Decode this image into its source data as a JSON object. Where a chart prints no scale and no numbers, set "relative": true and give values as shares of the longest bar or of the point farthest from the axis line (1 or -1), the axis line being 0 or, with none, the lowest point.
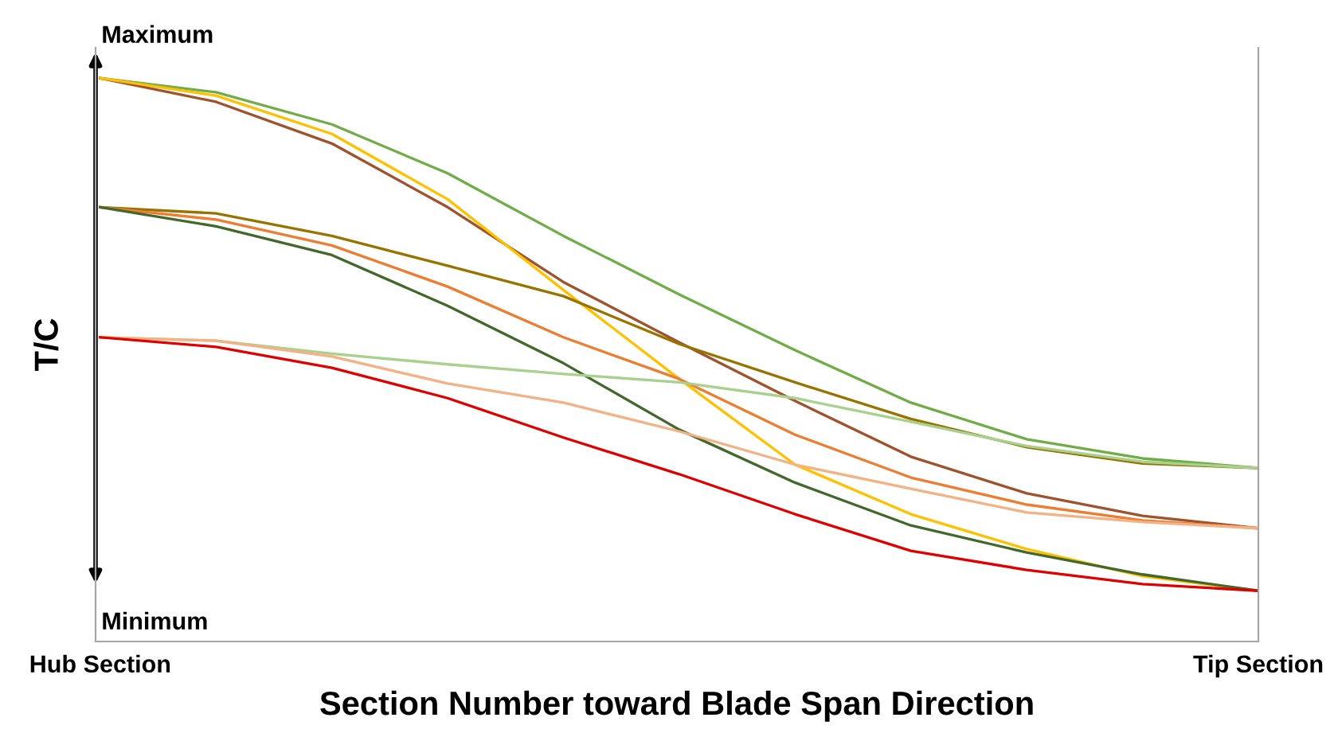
{
  "chart_data": {
    "type": "line",
    "relative": true,
    "xlabel": "Section Number toward Blade Span Direction",
    "ylabel": "T/C",
    "categories": [
      "Hub Section",
      null,
      null,
      null,
      null,
      null,
      null,
      null,
      null,
      null,
      "Tip Section"
    ],
    "annotations": [
      "Maximum",
      "Minimum"
    ],
    "grid": false,
    "legend": false,
    "marker": "none",
    "line_style": "solid",
    "series": [
      {
        "color": "#70ad47",
        "values": [
          1.0,
          0.975,
          0.918,
          0.831,
          0.72,
          0.616,
          0.517,
          0.424,
          0.359,
          0.325,
          0.308
        ]
      },
      {
        "color": "#a0522d",
        "values": [
          1.0,
          0.958,
          0.884,
          0.771,
          0.638,
          0.531,
          0.427,
          0.328,
          0.263,
          0.223,
          0.201
        ]
      },
      {
        "color": "#ffc000",
        "values": [
          1.0,
          0.969,
          0.901,
          0.785,
          0.624,
          0.466,
          0.314,
          0.226,
          0.164,
          0.116,
          0.09
        ]
      },
      {
        "color": "#997300",
        "values": [
          0.771,
          0.76,
          0.72,
          0.667,
          0.613,
          0.528,
          0.46,
          0.395,
          0.345,
          0.316,
          0.308
        ]
      },
      {
        "color": "#ed7d31",
        "values": [
          0.771,
          0.749,
          0.703,
          0.63,
          0.54,
          0.466,
          0.367,
          0.291,
          0.243,
          0.215,
          0.201
        ]
      },
      {
        "color": "#43682b",
        "values": [
          0.771,
          0.737,
          0.686,
          0.596,
          0.494,
          0.376,
          0.282,
          0.206,
          0.158,
          0.119,
          0.09
        ]
      },
      {
        "color": "#a9d18e",
        "values": [
          0.54,
          0.534,
          0.511,
          0.492,
          0.475,
          0.46,
          0.432,
          0.39,
          0.347,
          0.319,
          0.308
        ]
      },
      {
        "color": "#f4b183",
        "values": [
          0.54,
          0.534,
          0.506,
          0.458,
          0.424,
          0.373,
          0.314,
          0.271,
          0.229,
          0.212,
          0.201
        ]
      },
      {
        "color": "#e00000",
        "values": [
          0.54,
          0.523,
          0.486,
          0.432,
          0.362,
          0.297,
          0.226,
          0.161,
          0.127,
          0.102,
          0.09
        ]
      }
    ]
  }
}
